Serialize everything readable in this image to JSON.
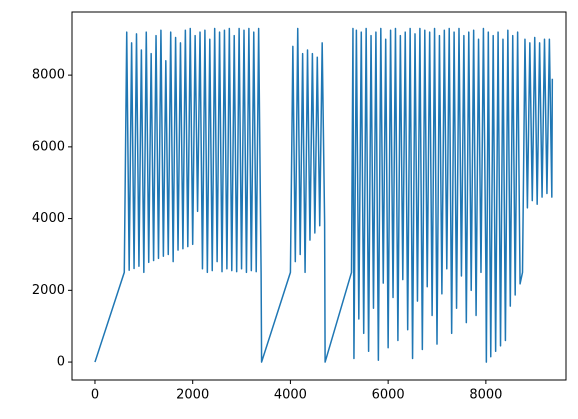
{
  "chart_data": {
    "type": "line",
    "color": "#1f77b4",
    "x": [
      0,
      600,
      650,
      700,
      750,
      800,
      850,
      900,
      950,
      1000,
      1050,
      1100,
      1150,
      1200,
      1250,
      1300,
      1350,
      1400,
      1450,
      1500,
      1550,
      1600,
      1650,
      1700,
      1750,
      1800,
      1850,
      1900,
      1950,
      2000,
      2050,
      2100,
      2150,
      2200,
      2250,
      2300,
      2350,
      2400,
      2450,
      2500,
      2550,
      2600,
      2650,
      2700,
      2750,
      2800,
      2850,
      2900,
      2950,
      3000,
      3050,
      3100,
      3150,
      3200,
      3250,
      3300,
      3350,
      3400,
      3410,
      4000,
      4050,
      4100,
      4150,
      4200,
      4250,
      4300,
      4350,
      4400,
      4450,
      4500,
      4550,
      4600,
      4650,
      4700,
      4710,
      5250,
      5280,
      5300,
      5350,
      5400,
      5450,
      5500,
      5550,
      5600,
      5650,
      5700,
      5750,
      5800,
      5850,
      5900,
      5950,
      6000,
      6050,
      6100,
      6150,
      6200,
      6250,
      6300,
      6350,
      6400,
      6450,
      6500,
      6550,
      6600,
      6650,
      6700,
      6750,
      6800,
      6850,
      6900,
      6950,
      7000,
      7050,
      7100,
      7150,
      7200,
      7250,
      7300,
      7350,
      7400,
      7450,
      7500,
      7550,
      7600,
      7650,
      7700,
      7750,
      7800,
      7850,
      7900,
      7950,
      8000,
      8010,
      8050,
      8100,
      8150,
      8200,
      8250,
      8300,
      8350,
      8400,
      8450,
      8500,
      8550,
      8600,
      8650,
      8700,
      8750,
      8800,
      8850,
      8900,
      8950,
      9000,
      9050,
      9100,
      9150,
      9200,
      9250,
      9300,
      9350,
      9360
    ],
    "values": [
      0,
      2500,
      9200,
      2560,
      8900,
      2610,
      9150,
      2670,
      8700,
      2500,
      9200,
      2780,
      8600,
      2830,
      9100,
      2890,
      9250,
      2950,
      8400,
      3000,
      9200,
      2800,
      9050,
      3120,
      8900,
      3160,
      9250,
      3220,
      9300,
      3280,
      9100,
      4200,
      9200,
      2600,
      9250,
      2500,
      9000,
      2550,
      9300,
      2800,
      9200,
      2520,
      9250,
      2600,
      9300,
      2550,
      9100,
      2520,
      9300,
      2600,
      9250,
      2500,
      9300,
      2550,
      9200,
      2520,
      9300,
      2500,
      0,
      2500,
      8800,
      2800,
      9300,
      3000,
      8600,
      2500,
      8700,
      3400,
      8600,
      3600,
      8500,
      3800,
      8900,
      3900,
      0,
      2500,
      9300,
      100,
      9250,
      1200,
      9200,
      800,
      9300,
      300,
      9100,
      1500,
      9200,
      50,
      9300,
      2200,
      9000,
      400,
      9250,
      1800,
      9300,
      600,
      9100,
      2300,
      9200,
      900,
      9300,
      100,
      9150,
      1700,
      9300,
      350,
      9250,
      2100,
      9200,
      1300,
      9300,
      500,
      9100,
      1900,
      9250,
      2600,
      9300,
      800,
      9200,
      1500,
      9300,
      2400,
      9100,
      1100,
      9200,
      2000,
      9250,
      1300,
      9000,
      2500,
      9300,
      2600,
      0,
      9200,
      150,
      9100,
      300,
      9200,
      450,
      9000,
      600,
      9250,
      1560,
      9100,
      1870,
      9200,
      2180,
      2500,
      9000,
      4300,
      8900,
      4500,
      9050,
      4400,
      8900,
      4600,
      9000,
      4700,
      9000,
      4600,
      7900
    ],
    "xlim": [
      -470,
      9640
    ],
    "ylim": [
      -500,
      9760
    ],
    "xticks": [
      0,
      2000,
      4000,
      6000,
      8000
    ],
    "yticks": [
      0,
      2000,
      4000,
      6000,
      8000
    ]
  }
}
